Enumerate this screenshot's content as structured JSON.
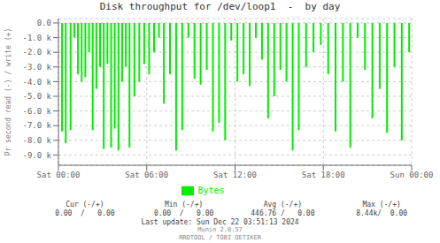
{
  "chart_data": {
    "type": "bar",
    "title": "Disk throughput for /dev/loop1  -  by day",
    "ylabel": "Pr second read (-)  /  write (+)",
    "x": [
      3,
      6,
      10,
      13,
      16,
      19,
      22,
      25,
      28,
      31,
      34,
      37,
      40,
      43,
      46,
      49,
      52,
      55,
      58,
      62,
      66,
      70,
      74,
      78,
      82,
      86,
      91,
      96,
      101,
      106,
      111,
      116,
      121,
      126,
      131,
      136,
      141,
      146,
      151,
      156,
      161,
      166,
      171,
      176,
      181,
      186,
      191,
      196,
      202,
      208,
      214,
      220,
      226,
      232,
      238,
      244,
      250,
      256,
      262,
      268,
      274,
      280,
      286
    ],
    "series": [
      {
        "name": "Bytes",
        "color": "#00ee00",
        "values": [
          -7400,
          -8200,
          -7300,
          -1000,
          -3500,
          -4000,
          -3700,
          -2000,
          -7300,
          -4500,
          -3000,
          -8600,
          -2800,
          -8500,
          -7200,
          -8700,
          -4000,
          -3000,
          -8500,
          -5000,
          -4000,
          -2800,
          -3500,
          -2000,
          -1000,
          -5500,
          -3500,
          -8700,
          -7300,
          -1000,
          -3800,
          -4200,
          -3200,
          -7400,
          -6800,
          -8000,
          -1200,
          -4000,
          -3500,
          -4300,
          -1000,
          -2500,
          -6500,
          -5000,
          -3200,
          -4000,
          -8700,
          -7300,
          -3000,
          -2000,
          -1500,
          -3500,
          -7400,
          -4000,
          -8500,
          -1000,
          -3200,
          -6500,
          -4500,
          -7500,
          -3000,
          -8000,
          -2000
        ]
      }
    ],
    "xlim": [
      0,
      288
    ],
    "xticks": [
      {
        "value": 0,
        "label": "Sat 00:00"
      },
      {
        "value": 72,
        "label": "Sat 06:00"
      },
      {
        "value": 144,
        "label": "Sat 12:00"
      },
      {
        "value": 216,
        "label": "Sat 18:00"
      },
      {
        "value": 288,
        "label": "Sun 00:00"
      }
    ],
    "ylim": [
      -9700,
      300
    ],
    "yticks": [
      {
        "value": 0,
        "label": "0.0"
      },
      {
        "value": -1000,
        "label": "-1.0 k"
      },
      {
        "value": -2000,
        "label": "-2.0 k"
      },
      {
        "value": -3000,
        "label": "-3.0 k"
      },
      {
        "value": -4000,
        "label": "-4.0 k"
      },
      {
        "value": -5000,
        "label": "-5.0 k"
      },
      {
        "value": -6000,
        "label": "-6.0 k"
      },
      {
        "value": -7000,
        "label": "-7.0 k"
      },
      {
        "value": -8000,
        "label": "-8.0 k"
      },
      {
        "value": -9000,
        "label": "-9.0 k"
      }
    ],
    "grid": true,
    "legend": "bottom",
    "annotations": [
      "Cur (-/+)",
      "Min (-/+)",
      "Avg (-/+)",
      "Max (-/+)",
      "0.00  /   0.00",
      "0.00  /   0.00",
      "446.76 /   0.00",
      "8.44k/  0.00",
      "Last update: Sun Dec 22 03:51:13 2024",
      "Munin 2.0.57",
      "RRDTOOL / TOBI OETIKER"
    ]
  }
}
